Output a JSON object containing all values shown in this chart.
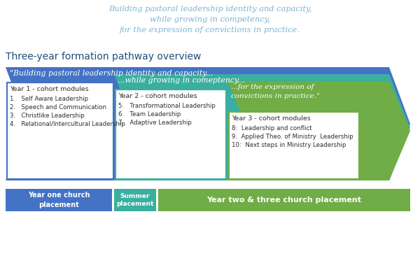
{
  "title_text": "Building pastoral leadership identity and capacity,\nwhile growing in competency,\nfor the expression of convictions in practice.",
  "section_title": "Three-year formation pathway overview",
  "section_title_color": "#1F4E79",
  "title_color": "#7FB3D3",
  "arrow1_color": "#4472C4",
  "arrow2_color": "#3AAFA0",
  "arrow3_color": "#70AD47",
  "arrow1_label": "\"Building pastoral leadership identity and capacity...",
  "arrow2_label": "...while growing in comeptency...",
  "arrow3_label": "...for the expression of\nconvictions in practice.\"",
  "box1_border": "#4472C4",
  "box2_border": "#3AAFA0",
  "box3_border": "#70AD47",
  "box1_title": "Year 1 - cohort modules",
  "box1_items": [
    "1.   Self Aware Leadership",
    "2.   Speech and Communication",
    "3.   Christlike Leadership",
    "4.   Relational/Intercultural Leadership"
  ],
  "box2_title": "Year 2 - cohort modules",
  "box2_items": [
    "5.   Transformational Leadership",
    "6.   Team Leadership",
    "7.   Adaptive Leadership"
  ],
  "box3_title": "Year 3 - cohort modules",
  "box3_items": [
    "8:  Leadership and conflict",
    "9.  Applied Theo. of Ministry  Leadership",
    "10:  Next steps in Ministry Leadership"
  ],
  "bottom_box1_color": "#4472C4",
  "bottom_box1_label": "Year one church\nplacement",
  "bottom_box2_color": "#3AAFA0",
  "bottom_box2_label": "Summer\nplacement",
  "bottom_box3_color": "#70AD47",
  "bottom_box3_label": "Year two & three church placement",
  "text_color_dark": "#2E2E2E",
  "bg_color": "#FFFFFF"
}
